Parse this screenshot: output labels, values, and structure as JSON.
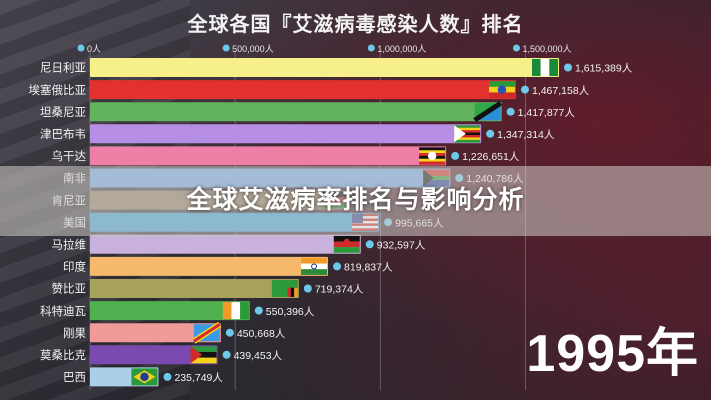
{
  "page": {
    "title": "全球各国『艾滋病毒感染人数』排名",
    "overlay_caption": "全球艾滋病率排名与影响分析",
    "year_label": "1995年"
  },
  "chart_data": {
    "type": "bar",
    "orientation": "horizontal",
    "title": "全球各国『艾滋病毒感染人数』排名",
    "x_ticks": [
      "0人",
      "500,000人",
      "1,000,000人",
      "1,500,000人"
    ],
    "x_tick_values": [
      0,
      500000,
      1000000,
      1500000
    ],
    "xlim": [
      0,
      1700000
    ],
    "grid": true,
    "categories": [
      "尼日利亚",
      "埃塞俄比亚",
      "坦桑尼亚",
      "津巴布韦",
      "乌干达",
      "南非",
      "肯尼亚",
      "美国",
      "马拉维",
      "印度",
      "赞比亚",
      "科特迪瓦",
      "刚果",
      "莫桑比克",
      "巴西"
    ],
    "values": [
      1615389,
      1467158,
      1417877,
      1347314,
      1226651,
      1240786,
      0,
      995665,
      932597,
      819837,
      719374,
      550396,
      450668,
      439453,
      235749
    ],
    "value_labels": [
      "1,615,389人",
      "1,467,158人",
      "1,417,877人",
      "1,347,314人",
      "1,226,651人",
      "1,240,786人",
      "",
      "995,665人",
      "932,597人",
      "819,837人",
      "719,374人",
      "550,396人",
      "450,668人",
      "439,453人",
      "235,749人"
    ],
    "colors": [
      "#f7f08a",
      "#e3312f",
      "#63b35e",
      "#b78ee6",
      "#ee7fa6",
      "#6fa6e6",
      "#9c8a6a",
      "#3b9fd6",
      "#c8b1dc",
      "#f6b86a",
      "#a6a25a",
      "#4fb04f",
      "#f19a9a",
      "#7b4ab0",
      "#a9cfe9"
    ],
    "flags": [
      "nigeria-flag",
      "ethiopia-flag",
      "tanzania-flag",
      "zimbabwe-flag",
      "uganda-flag",
      "south-africa-flag",
      "kenya-flag",
      "usa-flag",
      "malawi-flag",
      "india-flag",
      "zambia-flag",
      "cote-divoire-flag",
      "drc-flag",
      "mozambique-flag",
      "brazil-flag"
    ]
  }
}
